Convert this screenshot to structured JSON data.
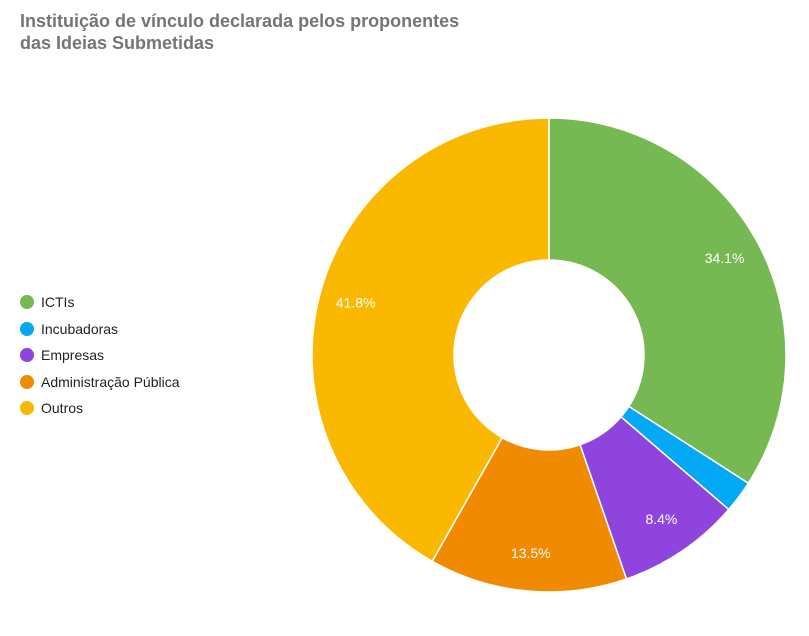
{
  "chart_data": {
    "type": "pie",
    "title_lines": [
      "Instituição de vínculo declarada pelos proponentes",
      "das Ideias Submetidas"
    ],
    "donut": true,
    "legend_position": "left",
    "slices": [
      {
        "name": "ICTIs",
        "value": 34.1,
        "label": "34.1%",
        "color": "#76b852"
      },
      {
        "name": "Incubadoras",
        "value": 2.2,
        "label": "",
        "color": "#03a9f4"
      },
      {
        "name": "Empresas",
        "value": 8.4,
        "label": "8.4%",
        "color": "#8e44dd"
      },
      {
        "name": "Administração Pública",
        "value": 13.5,
        "label": "13.5%",
        "color": "#f08a00"
      },
      {
        "name": "Outros",
        "value": 41.8,
        "label": "41.8%",
        "color": "#fbb800"
      }
    ]
  }
}
